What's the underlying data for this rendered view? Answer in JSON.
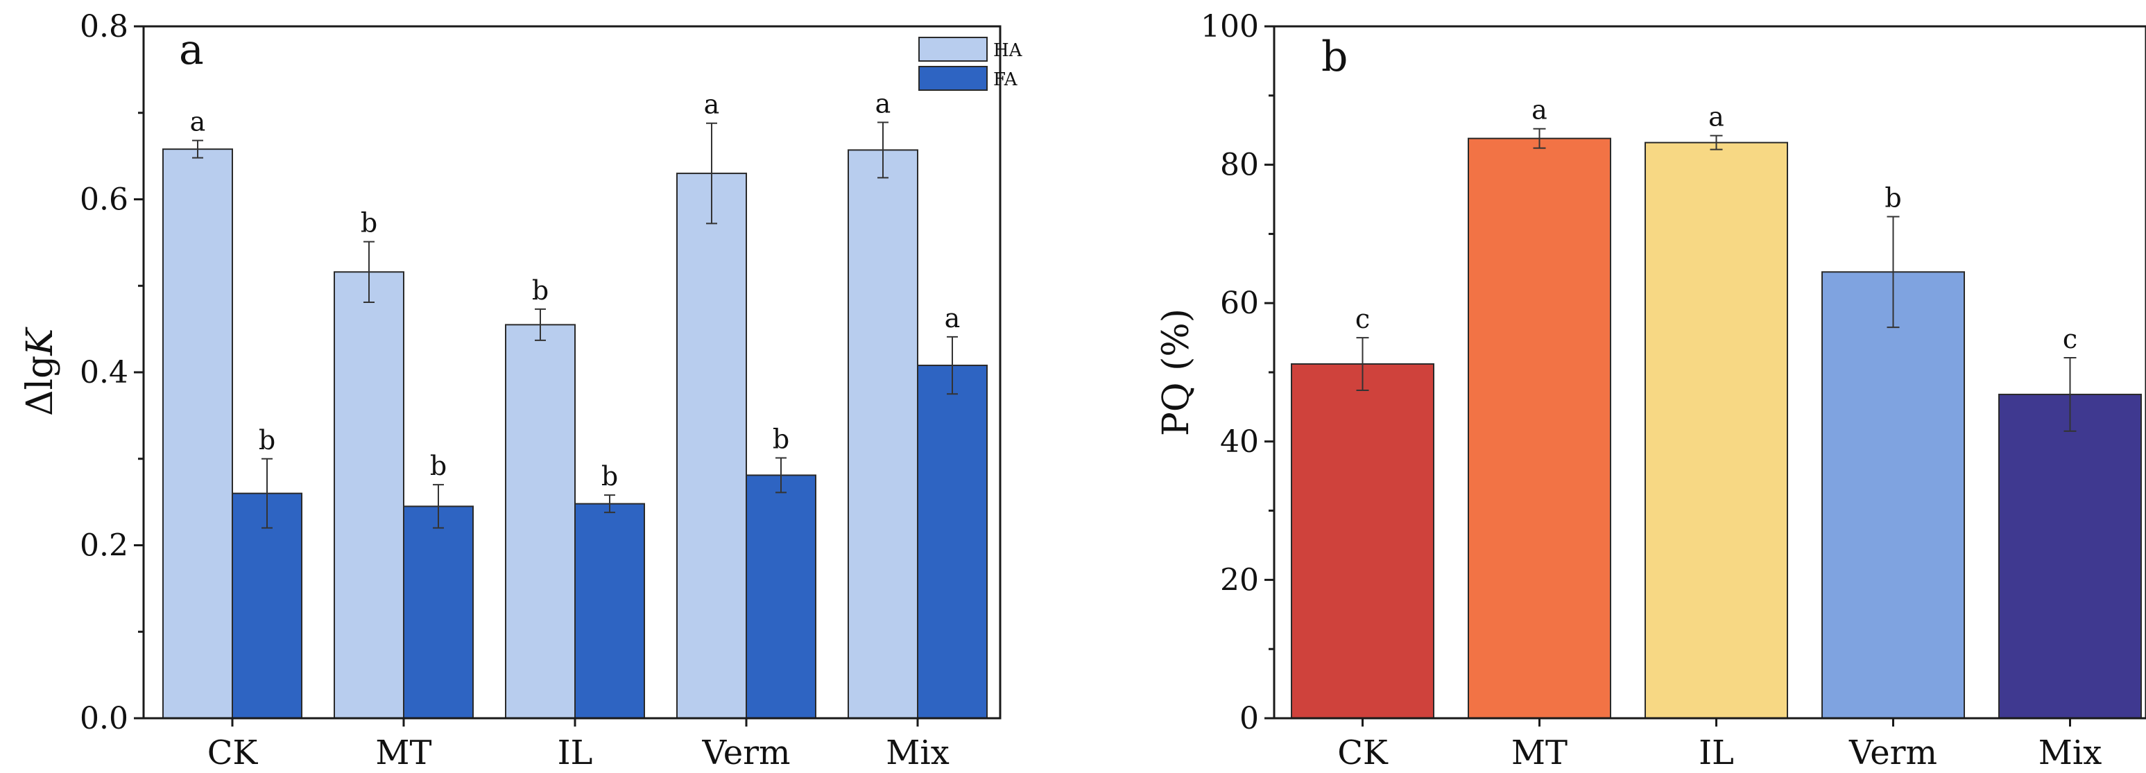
{
  "chart_data": [
    {
      "panel": "a",
      "type": "bar",
      "categories": [
        "CK",
        "MT",
        "IL",
        "Verm",
        "Mix"
      ],
      "ylabel_prefix": "Δlg",
      "ylabel_italic": "K",
      "ylim": [
        0.0,
        0.8
      ],
      "yticks": [
        "0.0",
        "0.2",
        "0.4",
        "0.6",
        "0.8"
      ],
      "legend_position": "top-right",
      "series": [
        {
          "name": "HA",
          "color": "#b8cdee",
          "values": [
            0.658,
            0.516,
            0.455,
            0.63,
            0.657
          ],
          "errors": [
            0.01,
            0.035,
            0.018,
            0.058,
            0.032
          ],
          "labels": [
            "a",
            "b",
            "b",
            "a",
            "a"
          ]
        },
        {
          "name": "FA",
          "color": "#2e64c2",
          "values": [
            0.26,
            0.245,
            0.248,
            0.281,
            0.408
          ],
          "errors": [
            0.04,
            0.025,
            0.01,
            0.02,
            0.033
          ],
          "labels": [
            "b",
            "b",
            "b",
            "b",
            "a"
          ]
        }
      ]
    },
    {
      "panel": "b",
      "type": "bar",
      "categories": [
        "CK",
        "MT",
        "IL",
        "Verm",
        "Mix"
      ],
      "ylabel": "PQ (%)",
      "ylim": [
        0,
        100
      ],
      "yticks": [
        "0",
        "20",
        "40",
        "60",
        "80",
        "100"
      ],
      "values": [
        51.2,
        83.8,
        83.2,
        64.5,
        46.8
      ],
      "errors": [
        3.8,
        1.4,
        1.0,
        8.0,
        5.3
      ],
      "labels": [
        "c",
        "a",
        "a",
        "b",
        "c"
      ],
      "colors": [
        "#cf423c",
        "#f27345",
        "#f7d884",
        "#7fa3e0",
        "#3f3990"
      ]
    }
  ]
}
